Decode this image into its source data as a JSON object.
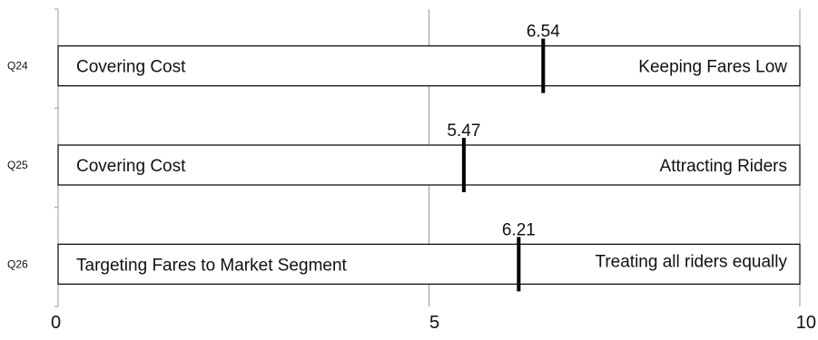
{
  "chart_data": {
    "type": "bar",
    "title": "",
    "xlabel": "",
    "ylabel": "",
    "xlim": [
      0,
      10
    ],
    "xticks": [
      0,
      5,
      10
    ],
    "grid": "vertical lines at 5 and 10",
    "categories": [
      "Q24",
      "Q25",
      "Q26"
    ],
    "items": [
      {
        "category": "Q24",
        "left_label": "Covering Cost",
        "right_label": "Keeping Fares Low",
        "value": 6.54,
        "value_label": "6.54"
      },
      {
        "category": "Q25",
        "left_label": "Covering Cost",
        "right_label": "Attracting Riders",
        "value": 5.47,
        "value_label": "5.47"
      },
      {
        "category": "Q26",
        "left_label": "Targeting Fares to Market Segment",
        "right_label": "Treating all riders equally",
        "value": 6.21,
        "value_label": "6.21"
      }
    ]
  }
}
